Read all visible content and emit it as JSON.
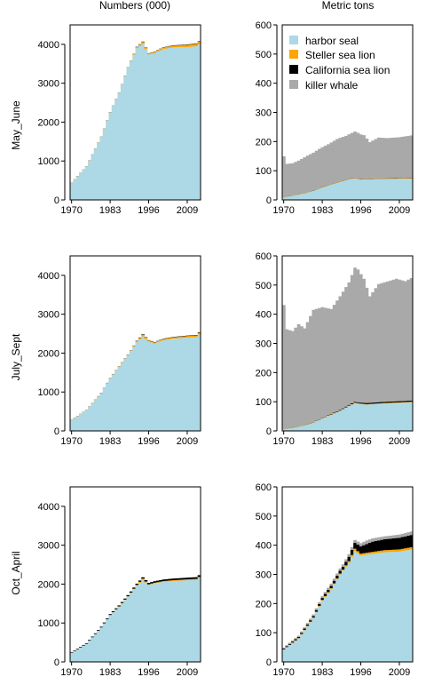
{
  "figure": {
    "col_titles": [
      "Numbers (000)",
      "Metric tons"
    ],
    "row_labels": [
      "May_June",
      "July_Sept",
      "Oct_April"
    ]
  },
  "legend": {
    "entries": [
      {
        "name": "harbor seal",
        "color": "#add8e6"
      },
      {
        "name": "Steller sea lion",
        "color": "#ffa500"
      },
      {
        "name": "California sea lion",
        "color": "#000000"
      },
      {
        "name": "killer whale",
        "color": "#a9a9a9"
      }
    ],
    "placement": "top-left inside top-right panel"
  },
  "chart_data": [
    {
      "type": "area",
      "panel": "May_June numbers",
      "column_title": "Numbers (000)",
      "row_label": "May_June",
      "x": [
        1970,
        2013
      ],
      "xticks": [
        1970,
        1983,
        1996,
        2009
      ],
      "ylim": [
        0,
        4500
      ],
      "yticks": [
        0,
        1000,
        2000,
        3000,
        4000
      ],
      "anchors": {
        "harbor seal": [
          [
            1970,
            440
          ],
          [
            1975,
            860
          ],
          [
            1980,
            1620
          ],
          [
            1983,
            2250
          ],
          [
            1986,
            2750
          ],
          [
            1989,
            3400
          ],
          [
            1992,
            3900
          ],
          [
            1994,
            4010
          ],
          [
            1996,
            3740
          ],
          [
            1998,
            3780
          ],
          [
            2001,
            3880
          ],
          [
            2004,
            3920
          ],
          [
            2009,
            3930
          ],
          [
            2012,
            3950
          ],
          [
            2013,
            4000
          ]
        ],
        "Steller sea lion": [
          [
            1970,
            5
          ],
          [
            1990,
            8
          ],
          [
            1994,
            50
          ],
          [
            1996,
            25
          ],
          [
            2013,
            65
          ]
        ],
        "California sea lion": [
          [
            1970,
            2
          ],
          [
            1990,
            4
          ],
          [
            1994,
            10
          ],
          [
            1996,
            6
          ],
          [
            2013,
            12
          ]
        ],
        "killer whale": [
          [
            1970,
            0
          ],
          [
            2013,
            0
          ]
        ]
      }
    },
    {
      "type": "area",
      "panel": "May_June biomass",
      "column_title": "Metric tons",
      "row_label": "May_June",
      "x": [
        1970,
        2013
      ],
      "xticks": [
        1970,
        1983,
        1996,
        2009
      ],
      "ylim": [
        0,
        600
      ],
      "yticks": [
        0,
        100,
        200,
        300,
        400,
        500,
        600
      ],
      "anchors": {
        "harbor seal": [
          [
            1970,
            8
          ],
          [
            1975,
            18
          ],
          [
            1980,
            30
          ],
          [
            1983,
            42
          ],
          [
            1986,
            52
          ],
          [
            1989,
            62
          ],
          [
            1992,
            70
          ],
          [
            1994,
            74
          ],
          [
            1996,
            69
          ],
          [
            1998,
            70
          ],
          [
            2001,
            71
          ],
          [
            2004,
            71
          ],
          [
            2009,
            72
          ],
          [
            2013,
            73
          ]
        ],
        "Steller sea lion": [
          [
            1970,
            1
          ],
          [
            2013,
            2
          ]
        ],
        "California sea lion": [
          [
            1970,
            0.5
          ],
          [
            2013,
            1
          ]
        ],
        "killer whale": [
          [
            1970,
            140
          ],
          [
            1971,
            112
          ],
          [
            1973,
            110
          ],
          [
            1975,
            115
          ],
          [
            1978,
            125
          ],
          [
            1982,
            135
          ],
          [
            1985,
            140
          ],
          [
            1988,
            148
          ],
          [
            1991,
            150
          ],
          [
            1994,
            158
          ],
          [
            1995,
            156
          ],
          [
            1997,
            150
          ],
          [
            1999,
            125
          ],
          [
            2002,
            140
          ],
          [
            2005,
            138
          ],
          [
            2009,
            140
          ],
          [
            2013,
            145
          ]
        ]
      }
    },
    {
      "type": "area",
      "panel": "July_Sept numbers",
      "column_title": "",
      "row_label": "July_Sept",
      "x": [
        1970,
        2013
      ],
      "xticks": [
        1970,
        1983,
        1996,
        2009
      ],
      "ylim": [
        0,
        4500
      ],
      "yticks": [
        0,
        1000,
        2000,
        3000,
        4000
      ],
      "anchors": {
        "harbor seal": [
          [
            1970,
            280
          ],
          [
            1975,
            530
          ],
          [
            1980,
            970
          ],
          [
            1983,
            1350
          ],
          [
            1986,
            1650
          ],
          [
            1989,
            1950
          ],
          [
            1992,
            2280
          ],
          [
            1994,
            2430
          ],
          [
            1996,
            2300
          ],
          [
            1998,
            2250
          ],
          [
            2001,
            2330
          ],
          [
            2004,
            2370
          ],
          [
            2009,
            2400
          ],
          [
            2012,
            2410
          ],
          [
            2013,
            2480
          ]
        ],
        "Steller sea lion": [
          [
            1970,
            5
          ],
          [
            1990,
            10
          ],
          [
            1994,
            45
          ],
          [
            1996,
            25
          ],
          [
            2013,
            45
          ]
        ],
        "California sea lion": [
          [
            1970,
            3
          ],
          [
            1990,
            5
          ],
          [
            1994,
            12
          ],
          [
            1996,
            8
          ],
          [
            2013,
            12
          ]
        ],
        "killer whale": [
          [
            1970,
            0
          ],
          [
            2013,
            0
          ]
        ]
      }
    },
    {
      "type": "area",
      "panel": "July_Sept biomass",
      "column_title": "",
      "row_label": "July_Sept",
      "x": [
        1970,
        2013
      ],
      "xticks": [
        1970,
        1983,
        1996,
        2009
      ],
      "ylim": [
        0,
        600
      ],
      "yticks": [
        0,
        100,
        200,
        300,
        400,
        500,
        600
      ],
      "anchors": {
        "harbor seal": [
          [
            1970,
            5
          ],
          [
            1975,
            14
          ],
          [
            1980,
            28
          ],
          [
            1983,
            42
          ],
          [
            1986,
            55
          ],
          [
            1989,
            68
          ],
          [
            1992,
            85
          ],
          [
            1994,
            95
          ],
          [
            1996,
            92
          ],
          [
            1998,
            90
          ],
          [
            2001,
            92
          ],
          [
            2004,
            94
          ],
          [
            2009,
            96
          ],
          [
            2013,
            98
          ]
        ],
        "Steller sea lion": [
          [
            1970,
            1
          ],
          [
            2013,
            2
          ]
        ],
        "California sea lion": [
          [
            1970,
            0.5
          ],
          [
            1984,
            1
          ],
          [
            1994,
            3
          ],
          [
            1998,
            4
          ],
          [
            2013,
            4
          ]
        ],
        "killer whale": [
          [
            1970,
            425
          ],
          [
            1971,
            340
          ],
          [
            1973,
            330
          ],
          [
            1975,
            350
          ],
          [
            1977,
            330
          ],
          [
            1980,
            385
          ],
          [
            1983,
            380
          ],
          [
            1986,
            360
          ],
          [
            1989,
            390
          ],
          [
            1992,
            420
          ],
          [
            1994,
            460
          ],
          [
            1995,
            455
          ],
          [
            1997,
            425
          ],
          [
            1999,
            365
          ],
          [
            2002,
            405
          ],
          [
            2005,
            412
          ],
          [
            2008,
            420
          ],
          [
            2011,
            410
          ],
          [
            2013,
            420
          ]
        ]
      }
    },
    {
      "type": "area",
      "panel": "Oct_April numbers",
      "column_title": "",
      "row_label": "Oct_April",
      "x": [
        1970,
        2013
      ],
      "xticks": [
        1970,
        1983,
        1996,
        2009
      ],
      "ylim": [
        0,
        4500
      ],
      "yticks": [
        0,
        1000,
        2000,
        3000,
        4000
      ],
      "anchors": {
        "harbor seal": [
          [
            1970,
            230
          ],
          [
            1975,
            460
          ],
          [
            1980,
            880
          ],
          [
            1983,
            1200
          ],
          [
            1986,
            1420
          ],
          [
            1989,
            1680
          ],
          [
            1992,
            1960
          ],
          [
            1994,
            2110
          ],
          [
            1996,
            1980
          ],
          [
            1998,
            2020
          ],
          [
            2001,
            2060
          ],
          [
            2004,
            2080
          ],
          [
            2009,
            2100
          ],
          [
            2012,
            2110
          ],
          [
            2013,
            2160
          ]
        ],
        "Steller sea lion": [
          [
            1970,
            3
          ],
          [
            1990,
            8
          ],
          [
            1994,
            30
          ],
          [
            1996,
            15
          ],
          [
            2013,
            25
          ]
        ],
        "California sea lion": [
          [
            1970,
            15
          ],
          [
            1980,
            20
          ],
          [
            1985,
            25
          ],
          [
            1994,
            35
          ],
          [
            2000,
            40
          ],
          [
            2013,
            45
          ]
        ],
        "killer whale": [
          [
            1970,
            0
          ],
          [
            2013,
            0
          ]
        ]
      }
    },
    {
      "type": "area",
      "panel": "Oct_April biomass",
      "column_title": "",
      "row_label": "Oct_April",
      "x": [
        1970,
        2013
      ],
      "xticks": [
        1970,
        1983,
        1996,
        2009
      ],
      "ylim": [
        0,
        600
      ],
      "yticks": [
        0,
        100,
        200,
        300,
        400,
        500,
        600
      ],
      "anchors": {
        "harbor seal": [
          [
            1970,
            42
          ],
          [
            1975,
            80
          ],
          [
            1980,
            150
          ],
          [
            1983,
            210
          ],
          [
            1986,
            250
          ],
          [
            1989,
            300
          ],
          [
            1992,
            340
          ],
          [
            1994,
            380
          ],
          [
            1996,
            365
          ],
          [
            1998,
            368
          ],
          [
            2001,
            372
          ],
          [
            2004,
            376
          ],
          [
            2009,
            378
          ],
          [
            2013,
            385
          ]
        ],
        "Steller sea lion": [
          [
            1970,
            1
          ],
          [
            1990,
            3
          ],
          [
            1994,
            8
          ],
          [
            1996,
            6
          ],
          [
            2013,
            8
          ]
        ],
        "California sea lion": [
          [
            1970,
            3
          ],
          [
            1980,
            5
          ],
          [
            1985,
            8
          ],
          [
            1990,
            10
          ],
          [
            1994,
            20
          ],
          [
            1996,
            25
          ],
          [
            2000,
            35
          ],
          [
            2005,
            38
          ],
          [
            2013,
            42
          ]
        ],
        "killer whale": [
          [
            1970,
            3
          ],
          [
            1980,
            6
          ],
          [
            1990,
            8
          ],
          [
            1994,
            10
          ],
          [
            1998,
            12
          ],
          [
            2005,
            10
          ],
          [
            2013,
            12
          ]
        ]
      }
    }
  ]
}
